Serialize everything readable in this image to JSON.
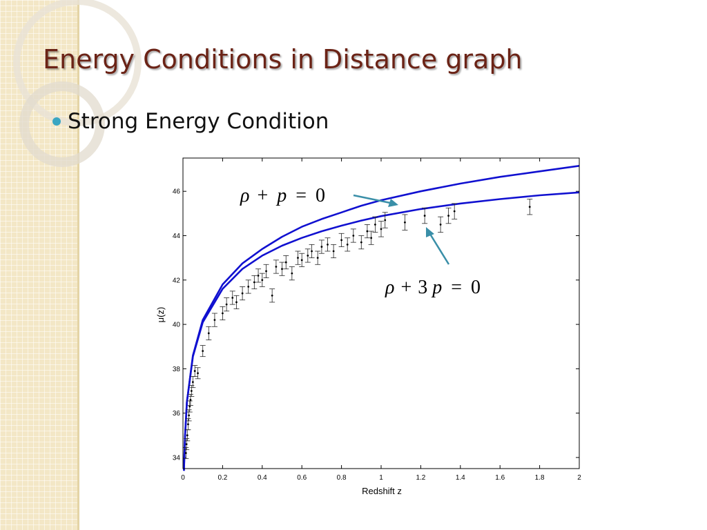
{
  "slide": {
    "title": "Energy Conditions in Distance graph",
    "bullet": "Strong Energy Condition"
  },
  "theme": {
    "title_color": "#6b2316",
    "bullet_color": "#3aa6c2",
    "curve_color": "#1010d0",
    "arrow_color": "#3a8fa8",
    "side_band_color": "#f3e7c6"
  },
  "chart_data": {
    "type": "scatter",
    "xlabel": "Redshift z",
    "ylabel": "μ(z)",
    "xlim": [
      0,
      2
    ],
    "ylim": [
      33.5,
      47.5
    ],
    "x_ticks": [
      "0",
      "0.2",
      "0.4",
      "0.6",
      "0.8",
      "1",
      "1.2",
      "1.4",
      "1.6",
      "1.8",
      "2"
    ],
    "y_ticks": [
      "34",
      "36",
      "38",
      "40",
      "42",
      "44",
      "46"
    ],
    "grid": false,
    "curves": [
      {
        "label": "ρ + p = 0",
        "x": [
          0.005,
          0.01,
          0.02,
          0.05,
          0.1,
          0.2,
          0.3,
          0.4,
          0.5,
          0.6,
          0.7,
          0.8,
          0.9,
          1.0,
          1.2,
          1.4,
          1.6,
          1.8,
          2.0
        ],
        "y": [
          33.4,
          34.9,
          36.5,
          38.6,
          40.2,
          41.8,
          42.75,
          43.4,
          43.95,
          44.4,
          44.75,
          45.05,
          45.35,
          45.6,
          46.0,
          46.35,
          46.65,
          46.9,
          47.15
        ]
      },
      {
        "label": "ρ + 3p = 0",
        "x": [
          0.005,
          0.01,
          0.02,
          0.05,
          0.1,
          0.2,
          0.3,
          0.4,
          0.5,
          0.6,
          0.7,
          0.8,
          0.9,
          1.0,
          1.2,
          1.4,
          1.6,
          1.8,
          2.0
        ],
        "y": [
          33.4,
          34.9,
          36.5,
          38.55,
          40.1,
          41.6,
          42.5,
          43.1,
          43.55,
          43.9,
          44.2,
          44.45,
          44.68,
          44.88,
          45.2,
          45.45,
          45.65,
          45.82,
          45.95
        ]
      }
    ],
    "points": [
      {
        "x": 0.015,
        "y": 34.2,
        "err": 0.25
      },
      {
        "x": 0.018,
        "y": 34.6,
        "err": 0.25
      },
      {
        "x": 0.022,
        "y": 35.0,
        "err": 0.25
      },
      {
        "x": 0.026,
        "y": 35.5,
        "err": 0.25
      },
      {
        "x": 0.03,
        "y": 35.9,
        "err": 0.25
      },
      {
        "x": 0.034,
        "y": 36.3,
        "err": 0.25
      },
      {
        "x": 0.038,
        "y": 36.6,
        "err": 0.25
      },
      {
        "x": 0.043,
        "y": 37.0,
        "err": 0.25
      },
      {
        "x": 0.05,
        "y": 37.4,
        "err": 0.25
      },
      {
        "x": 0.06,
        "y": 37.9,
        "err": 0.25
      },
      {
        "x": 0.075,
        "y": 37.8,
        "err": 0.25
      },
      {
        "x": 0.1,
        "y": 38.8,
        "err": 0.25
      },
      {
        "x": 0.13,
        "y": 39.6,
        "err": 0.3
      },
      {
        "x": 0.16,
        "y": 40.2,
        "err": 0.3
      },
      {
        "x": 0.2,
        "y": 40.5,
        "err": 0.3
      },
      {
        "x": 0.22,
        "y": 40.9,
        "err": 0.3
      },
      {
        "x": 0.25,
        "y": 41.2,
        "err": 0.3
      },
      {
        "x": 0.27,
        "y": 41.0,
        "err": 0.3
      },
      {
        "x": 0.3,
        "y": 41.4,
        "err": 0.3
      },
      {
        "x": 0.33,
        "y": 41.7,
        "err": 0.3
      },
      {
        "x": 0.36,
        "y": 41.9,
        "err": 0.3
      },
      {
        "x": 0.38,
        "y": 42.2,
        "err": 0.3
      },
      {
        "x": 0.4,
        "y": 42.0,
        "err": 0.3
      },
      {
        "x": 0.42,
        "y": 42.4,
        "err": 0.3
      },
      {
        "x": 0.45,
        "y": 41.3,
        "err": 0.3
      },
      {
        "x": 0.47,
        "y": 42.6,
        "err": 0.3
      },
      {
        "x": 0.5,
        "y": 42.5,
        "err": 0.3
      },
      {
        "x": 0.52,
        "y": 42.8,
        "err": 0.3
      },
      {
        "x": 0.55,
        "y": 42.3,
        "err": 0.3
      },
      {
        "x": 0.58,
        "y": 43.0,
        "err": 0.3
      },
      {
        "x": 0.6,
        "y": 42.9,
        "err": 0.3
      },
      {
        "x": 0.63,
        "y": 43.1,
        "err": 0.3
      },
      {
        "x": 0.65,
        "y": 43.3,
        "err": 0.3
      },
      {
        "x": 0.68,
        "y": 43.0,
        "err": 0.3
      },
      {
        "x": 0.7,
        "y": 43.5,
        "err": 0.3
      },
      {
        "x": 0.73,
        "y": 43.6,
        "err": 0.3
      },
      {
        "x": 0.76,
        "y": 43.3,
        "err": 0.3
      },
      {
        "x": 0.8,
        "y": 43.8,
        "err": 0.3
      },
      {
        "x": 0.83,
        "y": 43.6,
        "err": 0.3
      },
      {
        "x": 0.86,
        "y": 44.0,
        "err": 0.3
      },
      {
        "x": 0.9,
        "y": 43.7,
        "err": 0.3
      },
      {
        "x": 0.93,
        "y": 44.2,
        "err": 0.3
      },
      {
        "x": 0.95,
        "y": 43.9,
        "err": 0.3
      },
      {
        "x": 0.97,
        "y": 44.5,
        "err": 0.35
      },
      {
        "x": 1.0,
        "y": 44.3,
        "err": 0.35
      },
      {
        "x": 1.02,
        "y": 44.7,
        "err": 0.35
      },
      {
        "x": 1.12,
        "y": 44.6,
        "err": 0.35
      },
      {
        "x": 1.22,
        "y": 44.9,
        "err": 0.35
      },
      {
        "x": 1.3,
        "y": 44.5,
        "err": 0.35
      },
      {
        "x": 1.34,
        "y": 44.9,
        "err": 0.35
      },
      {
        "x": 1.37,
        "y": 45.1,
        "err": 0.35
      },
      {
        "x": 1.75,
        "y": 45.3,
        "err": 0.35
      }
    ],
    "annotations": {
      "eq1": {
        "rho": "ρ",
        "plus": "+",
        "p": "p",
        "equals": "=",
        "zero": "0"
      },
      "eq2": {
        "rho": "ρ",
        "plus": "+",
        "coef": "3",
        "p": "p",
        "equals": "=",
        "zero": "0"
      }
    }
  }
}
